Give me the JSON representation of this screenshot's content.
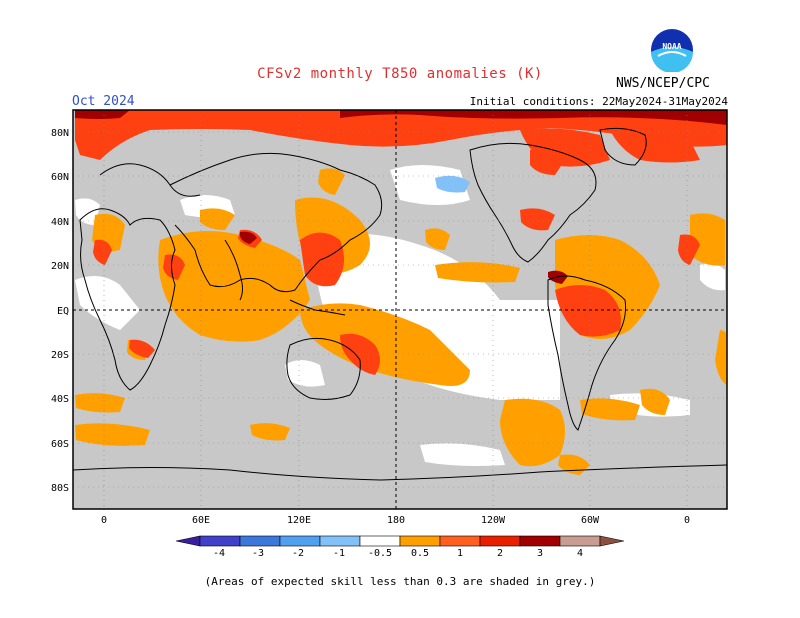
{
  "title": "CFSv2 monthly T850 anomalies (K)",
  "month": "Oct 2024",
  "initial_conditions": "Initial conditions: 22May2024-31May2024",
  "agency": "NWS/NCEP/CPC",
  "logo_text": "NOAA",
  "footnote": "(Areas of expected skill less than 0.3 are shaded in grey.)",
  "colors": {
    "title": "#e03030",
    "month": "#3050c8",
    "skill_grey": "#c8c8c8",
    "land_outline": "#000000"
  },
  "lat_labels": [
    "80N",
    "60N",
    "40N",
    "20N",
    "EQ",
    "20S",
    "40S",
    "60S",
    "80S"
  ],
  "lon_labels": [
    "0",
    "60E",
    "120E",
    "180",
    "120W",
    "60W",
    "0"
  ],
  "colorbar": {
    "labels": [
      "-4",
      "-3",
      "-2",
      "-1",
      "-0.5",
      "0.5",
      "1",
      "2",
      "3",
      "4"
    ],
    "colors": [
      "#3a1ea0",
      "#4040c8",
      "#3c78dc",
      "#50a0f0",
      "#82c0f8",
      "#ffffff",
      "#ffa000",
      "#ff6020",
      "#e82000",
      "#a00000",
      "#c89c90",
      "#8c5040"
    ]
  }
}
